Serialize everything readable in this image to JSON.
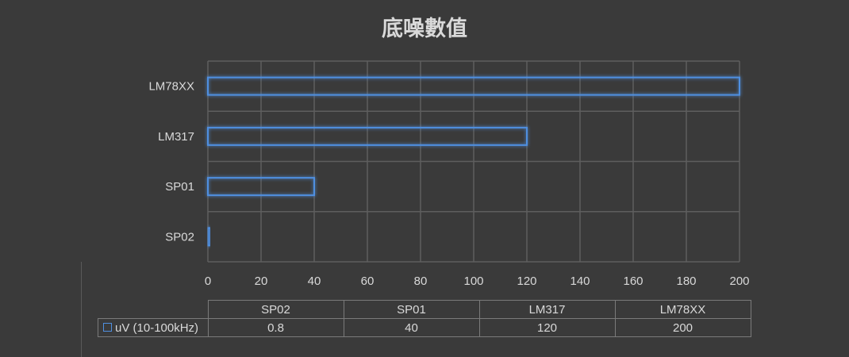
{
  "chart_data": {
    "type": "bar",
    "orientation": "horizontal",
    "title": "底噪數值",
    "categories": [
      "SP02",
      "SP01",
      "LM317",
      "LM78XX"
    ],
    "series": [
      {
        "name": "uV (10-100kHz)",
        "values": [
          0.8,
          40,
          120,
          200
        ]
      }
    ],
    "xlim": [
      0,
      200
    ],
    "x_ticks": [
      "0",
      "20",
      "40",
      "60",
      "80",
      "100",
      "120",
      "140",
      "160",
      "180",
      "200"
    ],
    "grid": true,
    "legend": "data-table",
    "data_table": {
      "headers": [
        "SP02",
        "SP01",
        "LM317",
        "LM78XX"
      ],
      "rows": [
        {
          "series": "uV (10-100kHz)",
          "values": [
            "0.8",
            "40",
            "120",
            "200"
          ]
        }
      ]
    }
  },
  "colors": {
    "background": "#3a3a3a",
    "bar_outline": "#4f8fe0",
    "grid": "#5e5e5e",
    "text": "#d9d9d9"
  }
}
